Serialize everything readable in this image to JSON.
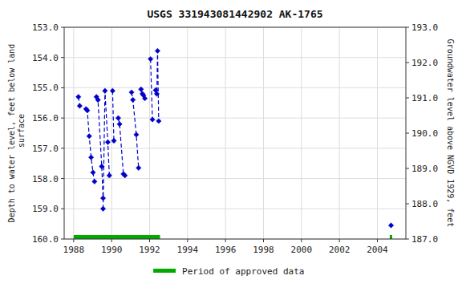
{
  "chart_data": {
    "type": "line",
    "title": "USGS 331943081442902 AK-1765",
    "ylabel": "Depth to water level, feet below land\n surface",
    "y2label": "Groundwater level above NGVD 1929, feet",
    "xlim": [
      1987.5,
      2005.5
    ],
    "xticks": [
      1988,
      1990,
      1992,
      1994,
      1996,
      1998,
      2000,
      2002,
      2004
    ],
    "ylim": [
      160.0,
      153.0
    ],
    "yticks": [
      {
        "value": 153.0,
        "label": "153.0"
      },
      {
        "value": 154.0,
        "label": "154.0"
      },
      {
        "value": 155.0,
        "label": "155.0"
      },
      {
        "value": 156.0,
        "label": "156.0"
      },
      {
        "value": 157.0,
        "label": "157.0"
      },
      {
        "value": 158.0,
        "label": "158.0"
      },
      {
        "value": 159.0,
        "label": "159.0"
      },
      {
        "value": 160.0,
        "label": "160.0"
      }
    ],
    "y2lim": [
      187.0,
      193.0
    ],
    "y2ticks": [
      {
        "value": 187.0,
        "label": "187.0"
      },
      {
        "value": 188.0,
        "label": "188.0"
      },
      {
        "value": 189.0,
        "label": "189.0"
      },
      {
        "value": 190.0,
        "label": "190.0"
      },
      {
        "value": 191.0,
        "label": "191.0"
      },
      {
        "value": 192.0,
        "label": "192.0"
      },
      {
        "value": 193.0,
        "label": "193.0"
      }
    ],
    "grid": true,
    "legend": "bottom",
    "series": [
      {
        "type": "line",
        "color": "#0000cc",
        "marker": "diamond",
        "line_style": "dashed",
        "x": [
          1988.25,
          1988.32,
          null,
          1988.65,
          1988.72,
          1988.82,
          1988.92,
          1989.02,
          1989.1,
          null,
          1989.2,
          1989.28,
          1989.48,
          1989.55,
          null,
          1989.55,
          1989.65,
          1989.8,
          1989.88,
          null,
          1990.05,
          1990.12,
          null,
          1990.35,
          1990.42,
          1990.62,
          1990.7,
          null,
          1991.05,
          1991.12,
          1991.3,
          1991.42,
          null,
          1991.55,
          1991.62,
          1991.68,
          1991.75,
          null,
          1992.05,
          1992.15,
          null,
          1992.32,
          1992.38,
          1992.42,
          1992.48,
          null,
          2004.72
        ],
        "values": [
          155.3,
          155.6,
          null,
          155.7,
          155.75,
          156.6,
          157.3,
          157.8,
          158.1,
          null,
          155.3,
          155.4,
          157.6,
          158.65,
          null,
          159.0,
          155.1,
          156.8,
          157.9,
          null,
          155.1,
          156.75,
          null,
          156.0,
          156.2,
          157.85,
          157.9,
          null,
          155.15,
          155.4,
          156.55,
          157.65,
          null,
          155.05,
          155.2,
          155.25,
          155.35,
          null,
          154.05,
          156.05,
          null,
          155.08,
          155.2,
          153.78,
          156.1,
          null,
          159.55
        ]
      },
      {
        "type": "band",
        "name": "Period of approved data",
        "color": "#00aa00",
        "x_start": [
          1988.0,
          2004.65
        ],
        "x_end": [
          1992.55,
          2004.78
        ],
        "values": [
          160.0,
          160.0
        ]
      }
    ]
  }
}
